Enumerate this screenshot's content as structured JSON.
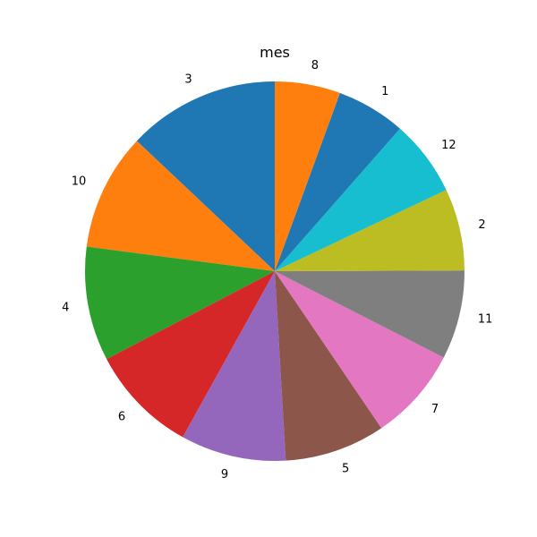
{
  "chart_data": {
    "type": "pie",
    "title": "mes",
    "start_angle_deg": 90,
    "direction": "counterclockwise",
    "legend": "none",
    "slices": [
      {
        "label": "3",
        "value": 0.1299,
        "color": "#1f77b4"
      },
      {
        "label": "10",
        "value": 0.1,
        "color": "#ff7f0e"
      },
      {
        "label": "4",
        "value": 0.0976,
        "color": "#2ca02c"
      },
      {
        "label": "6",
        "value": 0.093,
        "color": "#d62728"
      },
      {
        "label": "9",
        "value": 0.09,
        "color": "#9467bd"
      },
      {
        "label": "5",
        "value": 0.086,
        "color": "#8c564b"
      },
      {
        "label": "7",
        "value": 0.08,
        "color": "#e377c2"
      },
      {
        "label": "11",
        "value": 0.076,
        "color": "#7f7f7f"
      },
      {
        "label": "2",
        "value": 0.07,
        "color": "#bcbd22"
      },
      {
        "label": "12",
        "value": 0.065,
        "color": "#17becf"
      },
      {
        "label": "1",
        "value": 0.059,
        "color": "#1f77b4"
      },
      {
        "label": "8",
        "value": 0.056,
        "color": "#ff7f0e"
      }
    ]
  }
}
